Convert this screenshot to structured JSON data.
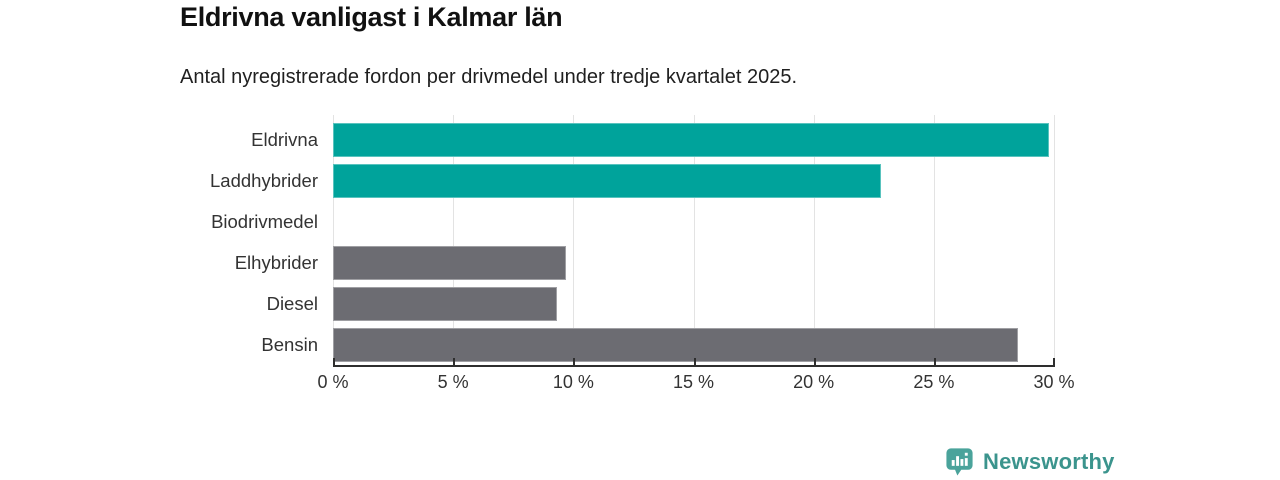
{
  "header": {
    "title": "Eldrivna vanligast i Kalmar län",
    "subtitle": "Antal nyregistrerade fordon per drivmedel under tredje kvartalet 2025."
  },
  "chart_data": {
    "type": "bar",
    "orientation": "horizontal",
    "title": "Eldrivna vanligast i Kalmar län",
    "subtitle": "Antal nyregistrerade fordon per drivmedel under tredje kvartalet 2025.",
    "categories": [
      "Eldrivna",
      "Laddhybrider",
      "Biodrivmedel",
      "Elhybrider",
      "Diesel",
      "Bensin"
    ],
    "values": [
      29.8,
      22.8,
      0,
      9.7,
      9.3,
      28.5
    ],
    "unit": "%",
    "bar_colors": [
      "#00A39B",
      "#00A39B",
      "#00A39B",
      "#6C6C72",
      "#6C6C72",
      "#6C6C72"
    ],
    "xlabel": "",
    "ylabel": "",
    "xlim": [
      0,
      30
    ],
    "x_ticks": [
      0,
      5,
      10,
      15,
      20,
      25,
      30
    ],
    "x_tick_labels": [
      "0 %",
      "5 %",
      "10 %",
      "15 %",
      "20 %",
      "25 %",
      "30 %"
    ],
    "grid": true,
    "legend": false
  },
  "footer": {
    "brand": "Newsworthy"
  },
  "colors": {
    "teal": "#00A39B",
    "gray": "#6C6C72",
    "gridline": "#E3E3E3",
    "axis": "#2E2E2E",
    "tick_text": "#333333",
    "title_text": "#111111",
    "brand_text": "#3B948D",
    "brand_icon": "#4AA39B"
  }
}
